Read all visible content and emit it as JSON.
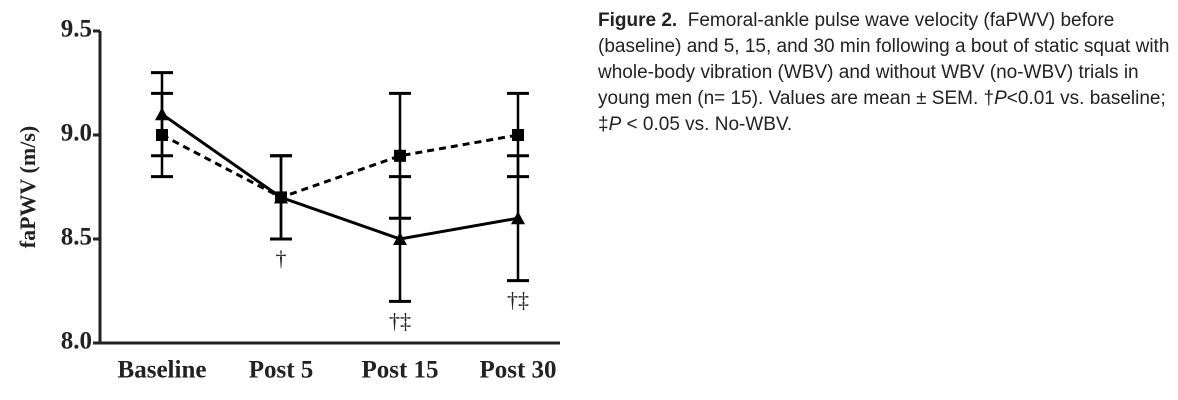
{
  "chart_data": {
    "type": "line",
    "categories": [
      "Baseline",
      "Post 5",
      "Post 15",
      "Post 30"
    ],
    "series": [
      {
        "color": "#000000",
        "dashed": false,
        "marker": "triangle",
        "values": [
          9.1,
          8.7,
          8.5,
          8.6
        ],
        "errors": [
          0.2,
          0.2,
          0.3,
          0.3
        ]
      },
      {
        "color": "#000000",
        "dashed": true,
        "marker": "square",
        "values": [
          9.0,
          8.7,
          8.9,
          9.0
        ],
        "errors": [
          0.2,
          0.2,
          0.3,
          0.2
        ]
      }
    ],
    "ylabel": "faPWV (m/s)",
    "ylim": [
      8.0,
      9.5
    ],
    "yticks": [
      {
        "value": 8.0,
        "label": "8.0"
      },
      {
        "value": 8.5,
        "label": "8.5"
      },
      {
        "value": 9.0,
        "label": "9.0"
      },
      {
        "value": 9.5,
        "label": "9.5"
      }
    ],
    "annotations": [
      null,
      "†",
      "†‡",
      "†‡"
    ],
    "grid": false
  },
  "caption": {
    "label": "Figure 2.",
    "segments": [
      "Femoral-ankle pulse wave velocity (faPWV) before (baseline) and 5, 15, and 30 min following  a bout of static squat with whole-body vibration (WBV) and without WBV (no-WBV) trials in young men (n= 15). Values are mean ± SEM. †",
      "P",
      "<0.01 vs. baseline; ‡",
      "P",
      " < 0.05 vs. No-WBV."
    ]
  }
}
